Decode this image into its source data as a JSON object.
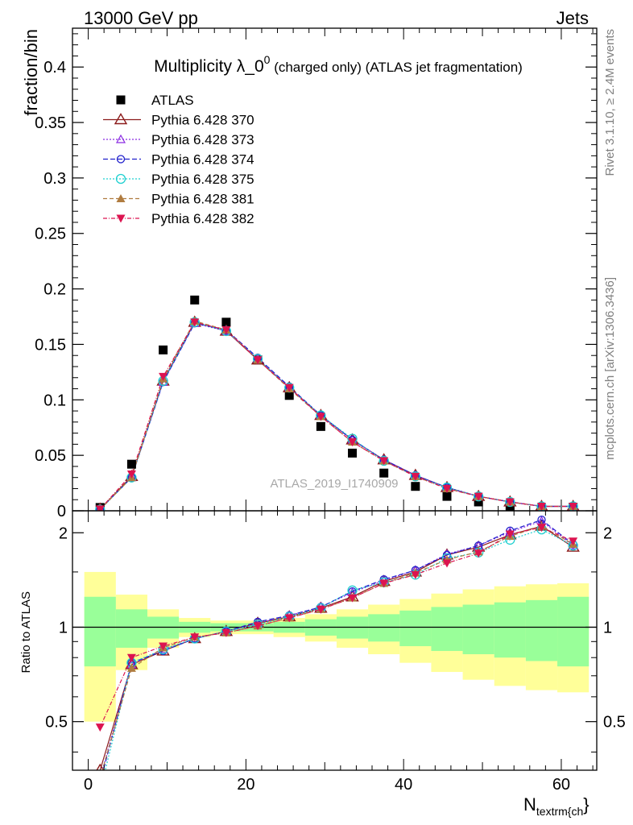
{
  "header": {
    "left": "13000 GeV pp",
    "right": "Jets"
  },
  "side_labels": {
    "rivet": "Rivet 3.1.10, ≥ 2.4M events",
    "mcplots": "mcplots.cern.ch [arXiv:1306.3436]"
  },
  "watermark": "ATLAS_2019_I1740909",
  "colors": {
    "data": "#000000",
    "band_inner": "#99ff99",
    "band_outer": "#ffff99"
  },
  "chart_data": [
    {
      "type": "scatter",
      "panel": "main",
      "title_main": "Multiplicity λ_0",
      "title_sup": "0",
      "title_rest": " (charged only) (ATLAS jet fragmentation)",
      "ylabel": "fraction/bin",
      "xlim": [
        -2,
        64.5
      ],
      "ylim": [
        0,
        0.435
      ],
      "y_ticks": [
        0,
        0.05,
        0.1,
        0.15,
        0.2,
        0.25,
        0.3,
        0.35,
        0.4
      ],
      "y_tick_labels": [
        "0",
        "0.05",
        "0.1",
        "0.15",
        "0.2",
        "0.25",
        "0.3",
        "0.35",
        "0.4"
      ],
      "x": [
        1.5,
        5.5,
        9.5,
        13.5,
        17.5,
        21.5,
        25.5,
        29.5,
        33.5,
        37.5,
        41.5,
        45.5,
        49.5,
        53.5,
        57.5,
        61.5
      ],
      "data": {
        "name": "ATLAS",
        "values": [
          0.003,
          0.042,
          0.145,
          0.19,
          0.17,
          0.136,
          0.104,
          0.076,
          0.052,
          0.034,
          0.022,
          0.013,
          0.008,
          0.004,
          0.002,
          0.003
        ]
      },
      "series": [
        {
          "name": "Pythia 6.428 370",
          "color": "#8b1a1a",
          "dash": "",
          "marker": "triangle-open",
          "values": [
            0.0015,
            0.031,
            0.117,
            0.17,
            0.162,
            0.136,
            0.111,
            0.086,
            0.064,
            0.046,
            0.032,
            0.021,
            0.013,
            0.008,
            0.004,
            0.004
          ]
        },
        {
          "name": "Pythia 6.428 373",
          "color": "#8a2be2",
          "dash": "2,2",
          "marker": "triangle-open-small",
          "values": [
            0.0013,
            0.03,
            0.116,
            0.169,
            0.162,
            0.137,
            0.111,
            0.086,
            0.064,
            0.046,
            0.032,
            0.021,
            0.013,
            0.008,
            0.004,
            0.004
          ]
        },
        {
          "name": "Pythia 6.428 374",
          "color": "#2020cc",
          "dash": "6,3",
          "marker": "circle-open",
          "values": [
            0.0012,
            0.03,
            0.116,
            0.169,
            0.163,
            0.138,
            0.112,
            0.086,
            0.064,
            0.046,
            0.032,
            0.021,
            0.013,
            0.008,
            0.004,
            0.004
          ]
        },
        {
          "name": "Pythia 6.428 375",
          "color": "#20d0d0",
          "dash": "2,2",
          "marker": "circle-open-big",
          "values": [
            0.0011,
            0.03,
            0.117,
            0.17,
            0.162,
            0.137,
            0.111,
            0.086,
            0.065,
            0.045,
            0.031,
            0.021,
            0.013,
            0.008,
            0.004,
            0.004
          ]
        },
        {
          "name": "Pythia 6.428 381",
          "color": "#b07c40",
          "dash": "5,3",
          "marker": "triangle-filled",
          "values": [
            0.0012,
            0.03,
            0.119,
            0.171,
            0.163,
            0.136,
            0.11,
            0.085,
            0.062,
            0.045,
            0.031,
            0.02,
            0.013,
            0.008,
            0.004,
            0.004
          ]
        },
        {
          "name": "Pythia 6.428 382",
          "color": "#dc1450",
          "dash": "5,2,1,2",
          "marker": "triangle-down-filled",
          "values": [
            0.0015,
            0.033,
            0.121,
            0.17,
            0.163,
            0.136,
            0.111,
            0.085,
            0.062,
            0.045,
            0.031,
            0.02,
            0.013,
            0.008,
            0.004,
            0.004
          ]
        }
      ]
    },
    {
      "type": "line",
      "panel": "ratio",
      "ylabel": "Ratio to ATLAS",
      "xlabel": "N",
      "xlabel_sub": "textrm{ch",
      "xlabel_end": "}",
      "ylim": [
        0.35,
        2.35
      ],
      "y_ticks": [
        0.5,
        1,
        2
      ],
      "y_tick_labels": [
        "0.5",
        "1",
        "2"
      ],
      "x_ticks": [
        0,
        20,
        40,
        60
      ],
      "x_tick_labels": [
        "0",
        "20",
        "40",
        "60"
      ],
      "bin_edges": [
        -0.5,
        3.5,
        7.5,
        11.5,
        15.5,
        19.5,
        23.5,
        27.5,
        31.5,
        35.5,
        39.5,
        43.5,
        47.5,
        51.5,
        55.5,
        59.5,
        63.5
      ],
      "band_inner": [
        0.25,
        0.14,
        0.08,
        0.04,
        0.03,
        0.03,
        0.04,
        0.06,
        0.08,
        0.1,
        0.13,
        0.16,
        0.18,
        0.2,
        0.22,
        0.25
      ],
      "band_outer": [
        0.5,
        0.27,
        0.14,
        0.07,
        0.05,
        0.05,
        0.07,
        0.1,
        0.14,
        0.18,
        0.23,
        0.28,
        0.32,
        0.35,
        0.37,
        0.38
      ],
      "series": [
        {
          "name": "Pythia 6.428 370",
          "values": [
            0.35,
            0.76,
            0.84,
            0.92,
            0.97,
            1.03,
            1.08,
            1.15,
            1.25,
            1.4,
            1.5,
            1.7,
            1.8,
            1.97,
            2.1,
            1.8
          ]
        },
        {
          "name": "Pythia 6.428 373",
          "values": [
            0.33,
            0.76,
            0.85,
            0.92,
            0.97,
            1.03,
            1.09,
            1.16,
            1.29,
            1.41,
            1.52,
            1.71,
            1.82,
            2.01,
            2.18,
            1.82
          ]
        },
        {
          "name": "Pythia 6.428 374",
          "values": [
            0.32,
            0.77,
            0.84,
            0.92,
            0.97,
            1.04,
            1.09,
            1.16,
            1.3,
            1.42,
            1.52,
            1.7,
            1.82,
            2.03,
            2.2,
            1.84
          ]
        },
        {
          "name": "Pythia 6.428 375",
          "values": [
            0.3,
            0.77,
            0.85,
            0.92,
            0.97,
            1.02,
            1.08,
            1.15,
            1.31,
            1.39,
            1.47,
            1.66,
            1.73,
            1.9,
            2.05,
            1.82
          ]
        },
        {
          "name": "Pythia 6.428 381",
          "values": [
            0.33,
            0.74,
            0.86,
            0.93,
            0.96,
            1.01,
            1.07,
            1.14,
            1.24,
            1.38,
            1.49,
            1.64,
            1.74,
            1.95,
            2.1,
            1.84
          ]
        },
        {
          "name": "Pythia 6.428 382",
          "values": [
            0.48,
            0.8,
            0.87,
            0.93,
            0.96,
            1.01,
            1.07,
            1.14,
            1.24,
            1.38,
            1.47,
            1.6,
            1.72,
            1.98,
            2.08,
            1.88
          ]
        }
      ]
    }
  ]
}
